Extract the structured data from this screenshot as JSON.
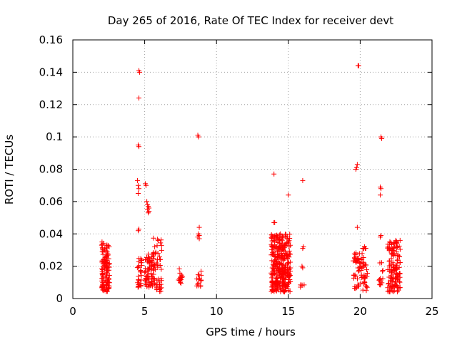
{
  "chart_data": {
    "type": "scatter",
    "title": "Day 265 of 2016, Rate Of TEC Index for receiver devt",
    "xlabel": "GPS time / hours",
    "ylabel": "ROTI / TECUs",
    "xlim": [
      0,
      25
    ],
    "ylim": [
      0,
      0.16
    ],
    "xticks": [
      0,
      5,
      10,
      15,
      20,
      25
    ],
    "xtick_labels": [
      "0",
      "5",
      "10",
      "15",
      "20",
      "25"
    ],
    "yticks": [
      0,
      0.02,
      0.04,
      0.06,
      0.08,
      0.1,
      0.12,
      0.14,
      0.16
    ],
    "ytick_labels": [
      "0",
      "0.02",
      "0.04",
      "0.06",
      "0.08",
      "0.1",
      "0.12",
      "0.14",
      "0.16"
    ],
    "grid": true,
    "marker": "plus",
    "color": "#ff0000",
    "clusters": [
      {
        "x_range": [
          2.0,
          2.55
        ],
        "y_range": [
          0.004,
          0.035
        ],
        "count": 130
      },
      {
        "x_range": [
          4.45,
          4.8
        ],
        "y_range": [
          0.007,
          0.025
        ],
        "count": 30
      },
      {
        "x_range": [
          5.0,
          5.7
        ],
        "y_range": [
          0.007,
          0.028
        ],
        "count": 75
      },
      {
        "x_range": [
          5.6,
          6.2
        ],
        "y_range": [
          0.004,
          0.038
        ],
        "count": 45
      },
      {
        "x_range": [
          7.35,
          7.65
        ],
        "y_range": [
          0.007,
          0.019
        ],
        "count": 14
      },
      {
        "x_range": [
          8.6,
          8.95
        ],
        "y_range": [
          0.007,
          0.018
        ],
        "count": 16
      },
      {
        "x_range": [
          13.8,
          15.15
        ],
        "y_range": [
          0.004,
          0.04
        ],
        "count": 340
      },
      {
        "x_range": [
          15.8,
          16.1
        ],
        "y_range": [
          0.007,
          0.01
        ],
        "count": 5
      },
      {
        "x_range": [
          19.5,
          20.0
        ],
        "y_range": [
          0.006,
          0.03
        ],
        "count": 35
      },
      {
        "x_range": [
          20.0,
          20.5
        ],
        "y_range": [
          0.004,
          0.032
        ],
        "count": 40
      },
      {
        "x_range": [
          21.3,
          21.6
        ],
        "y_range": [
          0.007,
          0.023
        ],
        "count": 14
      },
      {
        "x_range": [
          21.9,
          22.8
        ],
        "y_range": [
          0.004,
          0.036
        ],
        "count": 140
      }
    ],
    "points": [
      [
        4.6,
        0.141
      ],
      [
        4.65,
        0.14
      ],
      [
        4.6,
        0.124
      ],
      [
        4.55,
        0.095
      ],
      [
        4.6,
        0.094
      ],
      [
        4.5,
        0.073
      ],
      [
        4.55,
        0.07
      ],
      [
        4.6,
        0.068
      ],
      [
        4.55,
        0.065
      ],
      [
        4.6,
        0.043
      ],
      [
        4.55,
        0.042
      ],
      [
        5.05,
        0.071
      ],
      [
        5.1,
        0.07
      ],
      [
        5.15,
        0.06
      ],
      [
        5.2,
        0.058
      ],
      [
        5.25,
        0.057
      ],
      [
        5.3,
        0.056
      ],
      [
        5.2,
        0.055
      ],
      [
        5.3,
        0.054
      ],
      [
        5.25,
        0.053
      ],
      [
        8.7,
        0.101
      ],
      [
        8.75,
        0.1
      ],
      [
        8.8,
        0.044
      ],
      [
        8.75,
        0.04
      ],
      [
        8.8,
        0.039
      ],
      [
        8.7,
        0.038
      ],
      [
        8.8,
        0.037
      ],
      [
        14.0,
        0.077
      ],
      [
        14.0,
        0.047
      ],
      [
        14.05,
        0.047
      ],
      [
        15.0,
        0.064
      ],
      [
        14.95,
        0.038
      ],
      [
        14.9,
        0.037
      ],
      [
        16.0,
        0.073
      ],
      [
        16.05,
        0.032
      ],
      [
        16.0,
        0.031
      ],
      [
        15.95,
        0.02
      ],
      [
        16.0,
        0.019
      ],
      [
        19.85,
        0.144
      ],
      [
        19.9,
        0.144
      ],
      [
        19.8,
        0.083
      ],
      [
        19.75,
        0.081
      ],
      [
        19.7,
        0.08
      ],
      [
        19.8,
        0.044
      ],
      [
        20.3,
        0.032
      ],
      [
        20.35,
        0.031
      ],
      [
        21.45,
        0.1
      ],
      [
        21.5,
        0.099
      ],
      [
        21.4,
        0.069
      ],
      [
        21.45,
        0.068
      ],
      [
        21.4,
        0.064
      ],
      [
        21.45,
        0.039
      ],
      [
        21.4,
        0.038
      ]
    ]
  }
}
